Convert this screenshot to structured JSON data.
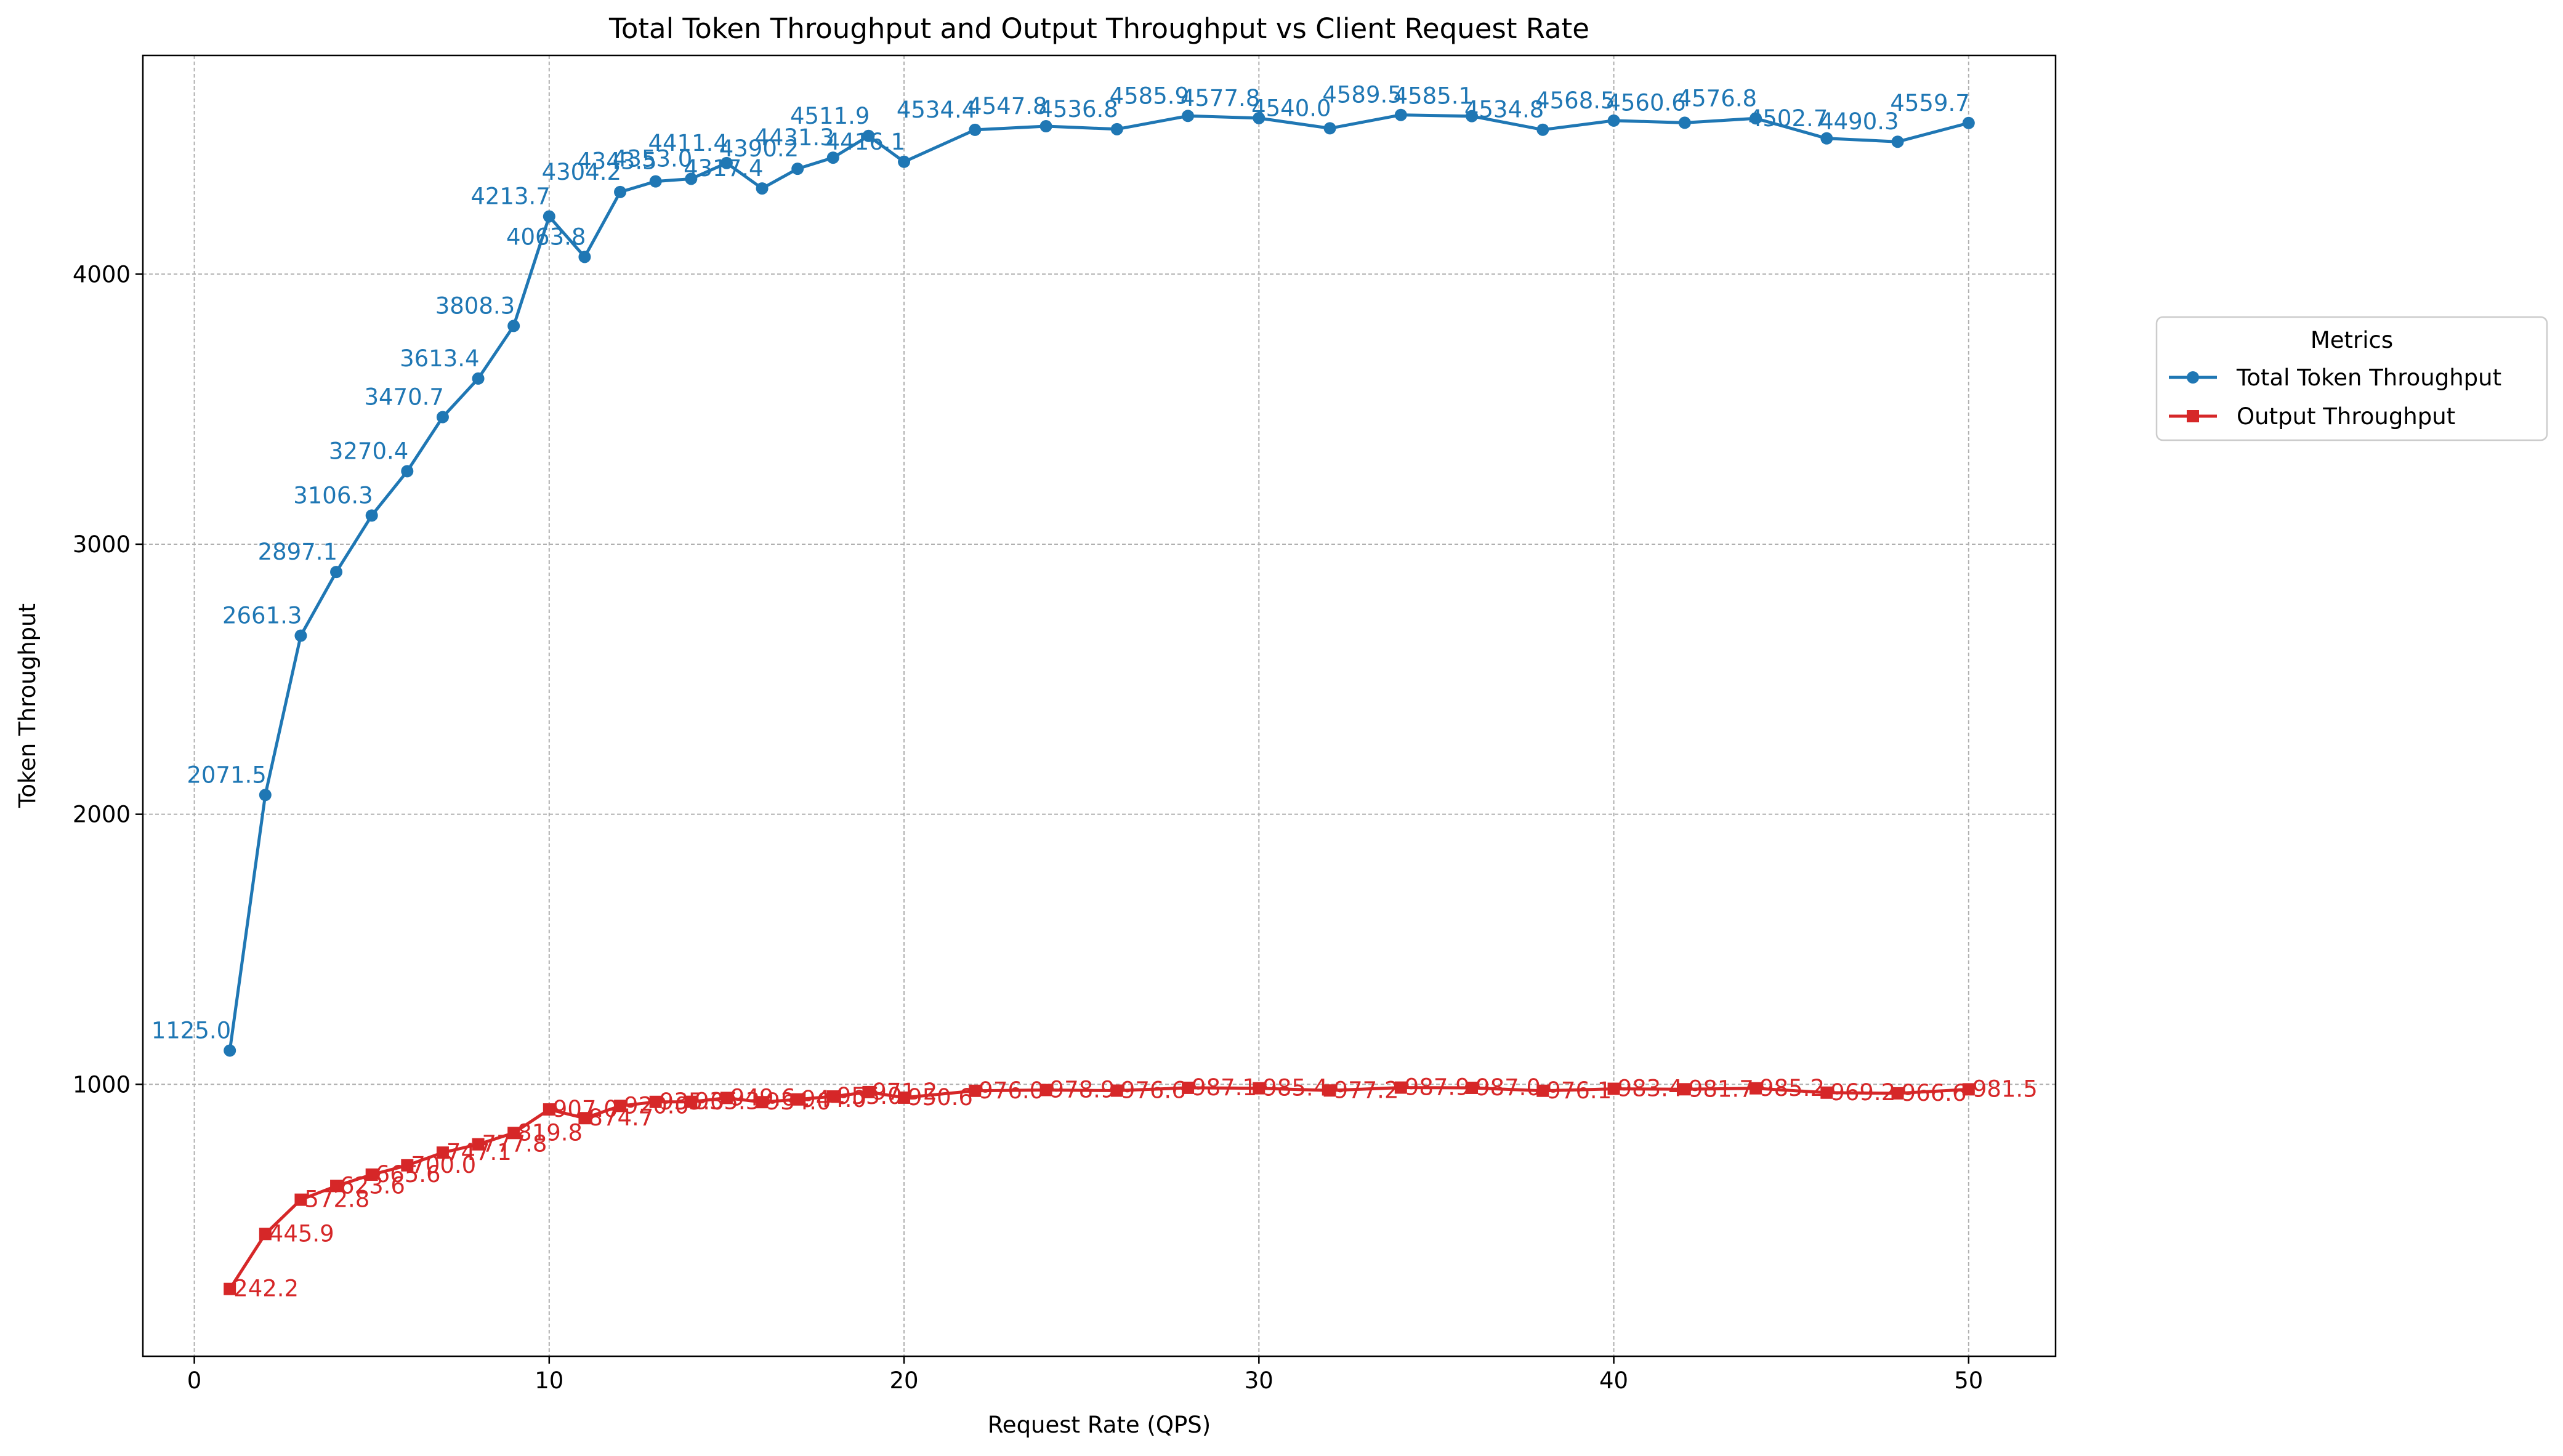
{
  "chart_data": {
    "type": "line",
    "title": "Total Token Throughput and Output Throughput vs Client Request Rate",
    "xlabel": "Request Rate (QPS)",
    "ylabel": "Token Throughput",
    "xlim": [
      -1.45,
      52.45
    ],
    "ylim": [
      -7,
      4810
    ],
    "xticks": [
      0,
      10,
      20,
      30,
      40,
      50
    ],
    "yticks": [
      1000,
      2000,
      3000,
      4000
    ],
    "grid": true,
    "legend": {
      "title": "Metrics",
      "placement": "right, outside plot"
    },
    "x": [
      1,
      2,
      3,
      4,
      5,
      6,
      7,
      8,
      9,
      10,
      11,
      12,
      13,
      14,
      15,
      16,
      17,
      18,
      19,
      20,
      22,
      24,
      26,
      28,
      30,
      32,
      34,
      36,
      38,
      40,
      42,
      44,
      46,
      48,
      50
    ],
    "series": [
      {
        "name": "Total Token Throughput",
        "color": "#1f77b4",
        "marker": "circle",
        "values": [
          1125.0,
          2071.5,
          2661.3,
          2897.1,
          3106.3,
          3270.4,
          3470.7,
          3613.4,
          3808.3,
          4213.7,
          4063.8,
          4304.2,
          4343.5,
          4353.0,
          4411.4,
          4317.4,
          4390.2,
          4431.3,
          4511.9,
          4416.1,
          4534.4,
          4547.8,
          4536.8,
          4585.9,
          4577.8,
          4540.0,
          4589.5,
          4585.1,
          4534.8,
          4568.5,
          4560.6,
          4576.8,
          4502.7,
          4490.3,
          4559.7
        ]
      },
      {
        "name": "Output Throughput",
        "color": "#d62728",
        "marker": "square",
        "values": [
          242.2,
          445.9,
          572.8,
          623.6,
          665.6,
          700.0,
          747.1,
          777.8,
          819.8,
          907.0,
          874.7,
          920.0,
          935.0,
          935.3,
          949.6,
          934.0,
          944.0,
          955.0,
          971.2,
          950.6,
          976.0,
          978.9,
          976.6,
          987.1,
          985.4,
          977.2,
          987.9,
          987.0,
          976.1,
          983.4,
          981.7,
          985.2,
          969.2,
          966.6,
          981.5
        ]
      }
    ]
  }
}
